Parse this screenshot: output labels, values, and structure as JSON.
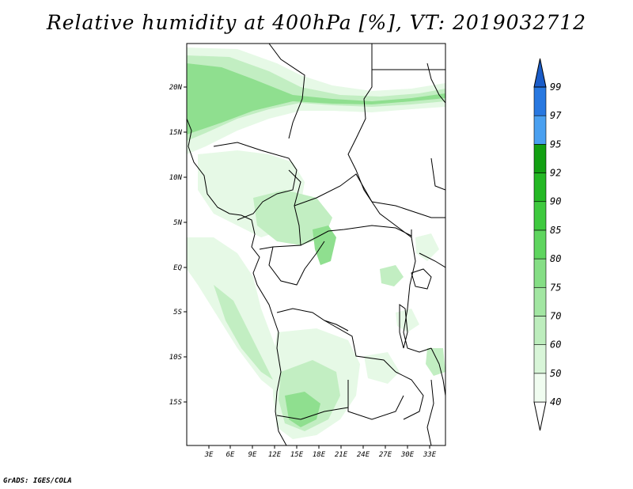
{
  "title": "Relative humidity at 400hPa [%], VT: 2019032712",
  "credit": "GrADS: IGES/COLA",
  "lat_labels": [
    "20N",
    "15N",
    "10N",
    "5N",
    "EQ",
    "5S",
    "10S",
    "15S"
  ],
  "lon_labels": [
    "3E",
    "6E",
    "9E",
    "12E",
    "15E",
    "18E",
    "21E",
    "24E",
    "27E",
    "30E",
    "33E"
  ],
  "colorbar": {
    "levels": [
      "40",
      "50",
      "60",
      "70",
      "75",
      "80",
      "85",
      "90",
      "92",
      "95",
      "97",
      "99"
    ],
    "colors": [
      "#f0fcf0",
      "#d8f5d8",
      "#bdedbd",
      "#a2e6a2",
      "#85de85",
      "#5fd55f",
      "#3ec93e",
      "#24b824",
      "#12a012",
      "#4aa0f0",
      "#2878e0",
      "#1a5cc8"
    ]
  },
  "shade_colors": {
    "light": "#e6f9e6",
    "mid": "#c2eec2",
    "strong": "#8fdf8f",
    "peak": "#5fd15f"
  }
}
